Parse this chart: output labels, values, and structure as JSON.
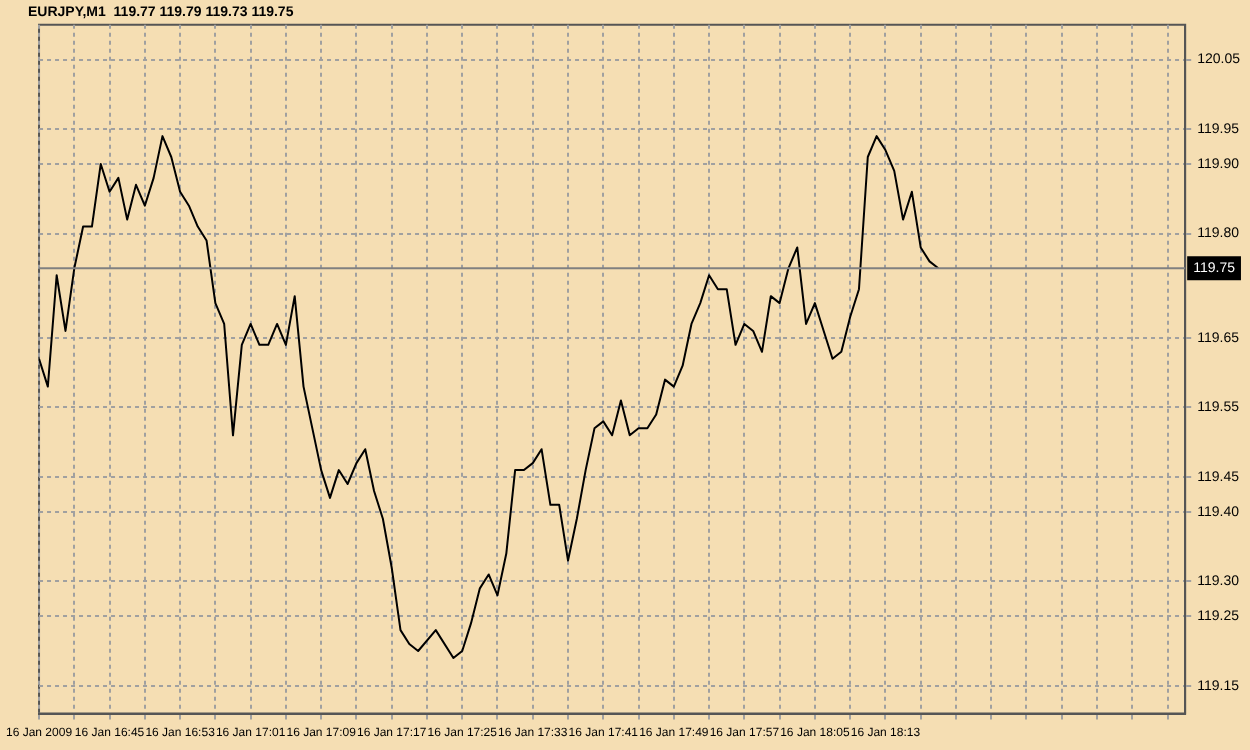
{
  "chart_data": {
    "type": "line",
    "title": "EURJPY,M1  119.77 119.79 119.73 119.75",
    "marker": "none",
    "line_style": "solid",
    "grid": true,
    "xlim": [
      "2009-01-16T16:37",
      "2009-01-16T18:47"
    ],
    "ylim": [
      119.11,
      120.1
    ],
    "xticks": [
      {
        "value": "2009-01-16T16:37",
        "label": "16 Jan 2009"
      },
      {
        "value": "2009-01-16T16:41",
        "label": null
      },
      {
        "value": "2009-01-16T16:45",
        "label": "16 Jan 16:45"
      },
      {
        "value": "2009-01-16T16:49",
        "label": null
      },
      {
        "value": "2009-01-16T16:53",
        "label": "16 Jan 16:53"
      },
      {
        "value": "2009-01-16T16:57",
        "label": null
      },
      {
        "value": "2009-01-16T17:01",
        "label": "16 Jan 17:01"
      },
      {
        "value": "2009-01-16T17:05",
        "label": null
      },
      {
        "value": "2009-01-16T17:09",
        "label": "16 Jan 17:09"
      },
      {
        "value": "2009-01-16T17:13",
        "label": null
      },
      {
        "value": "2009-01-16T17:17",
        "label": "16 Jan 17:17"
      },
      {
        "value": "2009-01-16T17:21",
        "label": null
      },
      {
        "value": "2009-01-16T17:25",
        "label": "16 Jan 17:25"
      },
      {
        "value": "2009-01-16T17:29",
        "label": null
      },
      {
        "value": "2009-01-16T17:33",
        "label": "16 Jan 17:33"
      },
      {
        "value": "2009-01-16T17:37",
        "label": null
      },
      {
        "value": "2009-01-16T17:41",
        "label": "16 Jan 17:41"
      },
      {
        "value": "2009-01-16T17:45",
        "label": null
      },
      {
        "value": "2009-01-16T17:49",
        "label": "16 Jan 17:49"
      },
      {
        "value": "2009-01-16T17:53",
        "label": null
      },
      {
        "value": "2009-01-16T17:57",
        "label": "16 Jan 17:57"
      },
      {
        "value": "2009-01-16T18:01",
        "label": null
      },
      {
        "value": "2009-01-16T18:05",
        "label": "16 Jan 18:05"
      },
      {
        "value": "2009-01-16T18:09",
        "label": null
      },
      {
        "value": "2009-01-16T18:13",
        "label": "16 Jan 18:13"
      },
      {
        "value": "2009-01-16T18:17",
        "label": null
      },
      {
        "value": "2009-01-16T18:21",
        "label": null
      },
      {
        "value": "2009-01-16T18:25",
        "label": null
      },
      {
        "value": "2009-01-16T18:29",
        "label": null
      },
      {
        "value": "2009-01-16T18:33",
        "label": null
      },
      {
        "value": "2009-01-16T18:37",
        "label": null
      },
      {
        "value": "2009-01-16T18:41",
        "label": null
      },
      {
        "value": "2009-01-16T18:45",
        "label": null
      }
    ],
    "yticks": [
      {
        "value": 119.15,
        "label": "119.15"
      },
      {
        "value": 119.25,
        "label": "119.25"
      },
      {
        "value": 119.3,
        "label": "119.30"
      },
      {
        "value": 119.4,
        "label": "119.40"
      },
      {
        "value": 119.45,
        "label": "119.45"
      },
      {
        "value": 119.55,
        "label": "119.55"
      },
      {
        "value": 119.65,
        "label": "119.65"
      },
      {
        "value": 119.8,
        "label": "119.80"
      },
      {
        "value": 119.9,
        "label": "119.90"
      },
      {
        "value": 119.95,
        "label": "119.95"
      },
      {
        "value": 120.05,
        "label": "120.05"
      }
    ],
    "ref_lines": [
      {
        "axis": "y",
        "value": 119.75,
        "label": "119.75",
        "color": "#808080"
      }
    ],
    "series": [
      {
        "color": "#000000",
        "x": [
          "2009-01-16T16:37",
          "2009-01-16T16:38",
          "2009-01-16T16:39",
          "2009-01-16T16:40",
          "2009-01-16T16:41",
          "2009-01-16T16:42",
          "2009-01-16T16:43",
          "2009-01-16T16:44",
          "2009-01-16T16:45",
          "2009-01-16T16:46",
          "2009-01-16T16:47",
          "2009-01-16T16:48",
          "2009-01-16T16:49",
          "2009-01-16T16:50",
          "2009-01-16T16:51",
          "2009-01-16T16:52",
          "2009-01-16T16:53",
          "2009-01-16T16:54",
          "2009-01-16T16:55",
          "2009-01-16T16:56",
          "2009-01-16T16:57",
          "2009-01-16T16:58",
          "2009-01-16T16:59",
          "2009-01-16T17:00",
          "2009-01-16T17:01",
          "2009-01-16T17:02",
          "2009-01-16T17:03",
          "2009-01-16T17:04",
          "2009-01-16T17:05",
          "2009-01-16T17:06",
          "2009-01-16T17:07",
          "2009-01-16T17:08",
          "2009-01-16T17:09",
          "2009-01-16T17:10",
          "2009-01-16T17:11",
          "2009-01-16T17:12",
          "2009-01-16T17:13",
          "2009-01-16T17:14",
          "2009-01-16T17:15",
          "2009-01-16T17:16",
          "2009-01-16T17:17",
          "2009-01-16T17:18",
          "2009-01-16T17:19",
          "2009-01-16T17:20",
          "2009-01-16T17:22",
          "2009-01-16T17:24",
          "2009-01-16T17:25",
          "2009-01-16T17:26",
          "2009-01-16T17:27",
          "2009-01-16T17:28",
          "2009-01-16T17:29",
          "2009-01-16T17:30",
          "2009-01-16T17:31",
          "2009-01-16T17:32",
          "2009-01-16T17:33",
          "2009-01-16T17:34",
          "2009-01-16T17:35",
          "2009-01-16T17:36",
          "2009-01-16T17:37",
          "2009-01-16T17:38",
          "2009-01-16T17:39",
          "2009-01-16T17:40",
          "2009-01-16T17:41",
          "2009-01-16T17:42",
          "2009-01-16T17:43",
          "2009-01-16T17:44",
          "2009-01-16T17:45",
          "2009-01-16T17:46",
          "2009-01-16T17:47",
          "2009-01-16T17:48",
          "2009-01-16T17:49",
          "2009-01-16T17:50",
          "2009-01-16T17:51",
          "2009-01-16T17:52",
          "2009-01-16T17:53",
          "2009-01-16T17:54",
          "2009-01-16T17:55",
          "2009-01-16T17:56",
          "2009-01-16T17:57",
          "2009-01-16T17:58",
          "2009-01-16T17:59",
          "2009-01-16T18:00",
          "2009-01-16T18:01",
          "2009-01-16T18:02",
          "2009-01-16T18:03",
          "2009-01-16T18:04",
          "2009-01-16T18:05",
          "2009-01-16T18:06",
          "2009-01-16T18:07",
          "2009-01-16T18:08",
          "2009-01-16T18:09",
          "2009-01-16T18:10",
          "2009-01-16T18:11",
          "2009-01-16T18:12",
          "2009-01-16T18:13",
          "2009-01-16T18:14",
          "2009-01-16T18:15",
          "2009-01-16T18:16",
          "2009-01-16T18:17",
          "2009-01-16T18:18",
          "2009-01-16T18:19"
        ],
        "values": [
          119.62,
          119.58,
          119.74,
          119.66,
          119.75,
          119.81,
          119.81,
          119.9,
          119.86,
          119.88,
          119.82,
          119.87,
          119.84,
          119.88,
          119.94,
          119.91,
          119.86,
          119.84,
          119.81,
          119.79,
          119.7,
          119.67,
          119.51,
          119.64,
          119.67,
          119.64,
          119.64,
          119.67,
          119.64,
          119.71,
          119.58,
          119.52,
          119.46,
          119.42,
          119.46,
          119.44,
          119.47,
          119.49,
          119.43,
          119.39,
          119.32,
          119.23,
          119.21,
          119.2,
          119.23,
          119.19,
          119.2,
          119.24,
          119.29,
          119.31,
          119.28,
          119.34,
          119.46,
          119.46,
          119.47,
          119.49,
          119.41,
          119.41,
          119.33,
          119.39,
          119.46,
          119.52,
          119.53,
          119.51,
          119.56,
          119.51,
          119.52,
          119.52,
          119.54,
          119.59,
          119.58,
          119.61,
          119.67,
          119.7,
          119.74,
          119.72,
          119.72,
          119.64,
          119.67,
          119.66,
          119.63,
          119.71,
          119.7,
          119.75,
          119.78,
          119.67,
          119.7,
          119.66,
          119.62,
          119.63,
          119.68,
          119.72,
          119.91,
          119.94,
          119.92,
          119.89,
          119.82,
          119.86,
          119.78,
          119.76,
          119.75
        ]
      }
    ]
  }
}
